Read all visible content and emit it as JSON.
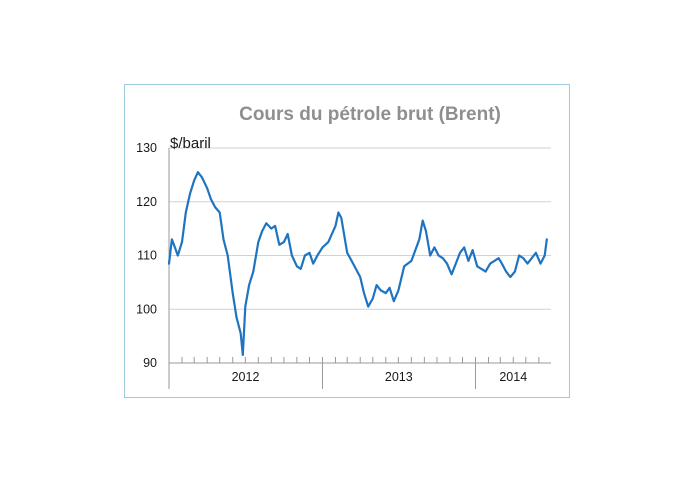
{
  "chart_data": {
    "type": "line",
    "title": "Cours du pétrole brut (Brent)",
    "ylabel": "$/baril",
    "xlabel": "",
    "ylim": [
      90,
      130
    ],
    "yticks": [
      90,
      100,
      110,
      120,
      130
    ],
    "xlim": [
      "2012-01-01",
      "2014-06-30"
    ],
    "year_labels": [
      {
        "label": "2012",
        "start": "2012-01-01",
        "end": "2012-12-31"
      },
      {
        "label": "2013",
        "start": "2013-01-01",
        "end": "2013-12-31"
      },
      {
        "label": "2014",
        "start": "2014-01-01",
        "end": "2014-06-30"
      }
    ],
    "grid": true,
    "legend": "none",
    "color": "#1f74c2",
    "series": [
      {
        "x": [
          "2012-01-01",
          "2012-01-08",
          "2012-01-15",
          "2012-01-22",
          "2012-02-01",
          "2012-02-10",
          "2012-02-20",
          "2012-03-01",
          "2012-03-10",
          "2012-03-20",
          "2012-04-01",
          "2012-04-10",
          "2012-04-20",
          "2012-05-01",
          "2012-05-10",
          "2012-05-20",
          "2012-06-01",
          "2012-06-10",
          "2012-06-20",
          "2012-06-25",
          "2012-07-01",
          "2012-07-10",
          "2012-07-20",
          "2012-08-01",
          "2012-08-10",
          "2012-08-20",
          "2012-09-01",
          "2012-09-10",
          "2012-09-20",
          "2012-10-01",
          "2012-10-10",
          "2012-10-20",
          "2012-11-01",
          "2012-11-10",
          "2012-11-20",
          "2012-12-01",
          "2012-12-10",
          "2012-12-20",
          "2013-01-01",
          "2013-01-15",
          "2013-02-01",
          "2013-02-08",
          "2013-02-15",
          "2013-03-01",
          "2013-03-15",
          "2013-04-01",
          "2013-04-10",
          "2013-04-20",
          "2013-05-01",
          "2013-05-10",
          "2013-05-20",
          "2013-06-01",
          "2013-06-10",
          "2013-06-20",
          "2013-07-01",
          "2013-07-15",
          "2013-08-01",
          "2013-08-20",
          "2013-08-28",
          "2013-09-05",
          "2013-09-15",
          "2013-09-25",
          "2013-10-05",
          "2013-10-15",
          "2013-10-25",
          "2013-11-05",
          "2013-11-15",
          "2013-11-25",
          "2013-12-05",
          "2013-12-15",
          "2013-12-25",
          "2014-01-05",
          "2014-01-15",
          "2014-01-25",
          "2014-02-05",
          "2014-02-15",
          "2014-02-25",
          "2014-03-05",
          "2014-03-15",
          "2014-03-25",
          "2014-04-05",
          "2014-04-15",
          "2014-04-25",
          "2014-05-05",
          "2014-05-15",
          "2014-05-25",
          "2014-06-05",
          "2014-06-15",
          "2014-06-20"
        ],
        "values": [
          108.5,
          113.0,
          111.5,
          110.0,
          112.5,
          118.0,
          121.5,
          124.0,
          125.5,
          124.5,
          122.5,
          120.5,
          119.0,
          118.0,
          113.0,
          110.0,
          103.0,
          98.5,
          95.5,
          91.5,
          100.5,
          104.5,
          107.0,
          112.5,
          114.5,
          116.0,
          115.0,
          115.5,
          112.0,
          112.5,
          114.0,
          110.0,
          108.0,
          107.5,
          110.0,
          110.5,
          108.5,
          110.0,
          111.5,
          112.5,
          115.5,
          118.0,
          117.0,
          110.5,
          108.5,
          106.0,
          103.0,
          100.5,
          102.0,
          104.5,
          103.5,
          103.0,
          104.0,
          101.5,
          103.5,
          108.0,
          109.0,
          113.0,
          116.5,
          114.5,
          110.0,
          111.5,
          110.0,
          109.5,
          108.5,
          106.5,
          108.5,
          110.5,
          111.5,
          109.0,
          111.0,
          108.0,
          107.5,
          107.0,
          108.5,
          109.0,
          109.5,
          108.5,
          107.0,
          106.0,
          107.0,
          110.0,
          109.5,
          108.5,
          109.5,
          110.5,
          108.5,
          110.0,
          113.0
        ]
      }
    ]
  }
}
